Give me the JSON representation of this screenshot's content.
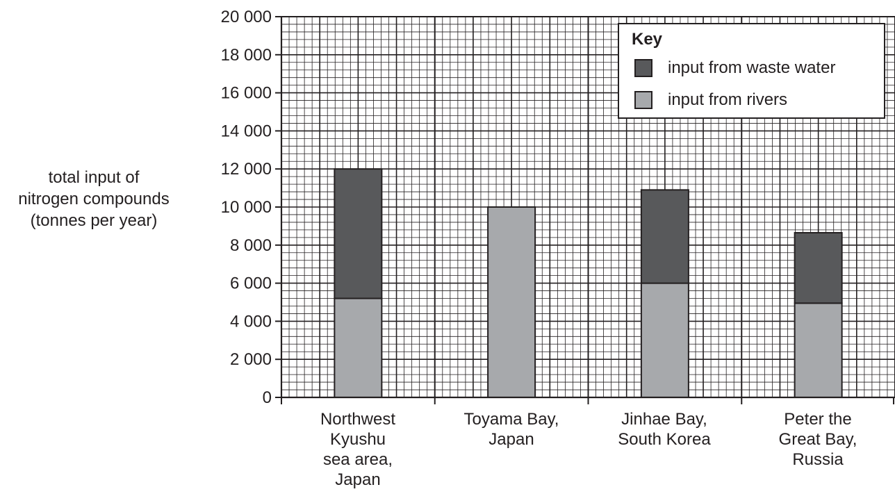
{
  "chart_data": {
    "type": "bar",
    "stacked": true,
    "title": "",
    "ylabel_lines": [
      "total input of",
      "nitrogen compounds",
      "(tonnes per year)"
    ],
    "xlabel": "",
    "categories": [
      [
        "Northwest",
        "Kyushu",
        "sea area,",
        "Japan"
      ],
      [
        "Toyama Bay,",
        "Japan"
      ],
      [
        "Jinhae Bay,",
        "South Korea"
      ],
      [
        "Peter the",
        "Great Bay,",
        "Russia"
      ]
    ],
    "series": [
      {
        "name": "input from rivers",
        "color": "#a7a9ac",
        "values": [
          5200,
          10000,
          6000,
          4950
        ]
      },
      {
        "name": "input from waste water",
        "color": "#58595b",
        "values": [
          6800,
          0,
          4900,
          3700
        ]
      }
    ],
    "ylim": [
      0,
      20000
    ],
    "yticks": [
      "0",
      "2000",
      "4000",
      "6000",
      "8000",
      "10000",
      "12000",
      "14000",
      "16000",
      "18000",
      "20000"
    ],
    "ytick_labels": [
      "0",
      "2 000",
      "4 000",
      "6 000",
      "8 000",
      "10 000",
      "12 000",
      "14 000",
      "16 000",
      "18 000",
      "20 000"
    ],
    "grid": true,
    "legend": {
      "title": "Key",
      "placement": "top-right",
      "items": [
        {
          "label": "input from waste water",
          "color": "#58595b"
        },
        {
          "label": "input from rivers",
          "color": "#a7a9ac"
        }
      ]
    }
  }
}
